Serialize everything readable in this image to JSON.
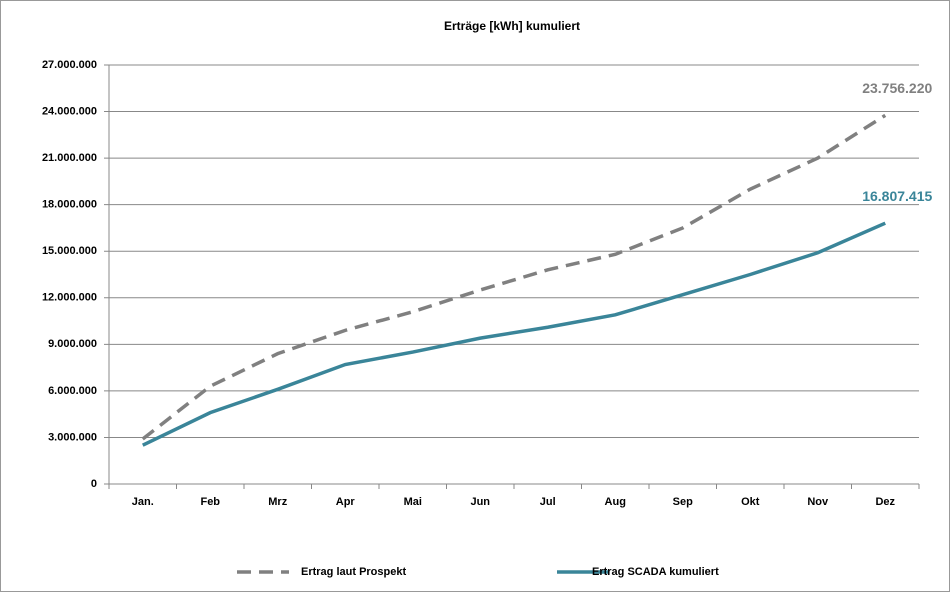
{
  "chart_data": {
    "type": "line",
    "title": "Erträge [kWh] kumuliert",
    "categories": [
      "Jan.",
      "Feb",
      "Mrz",
      "Apr",
      "Mai",
      "Jun",
      "Jul",
      "Aug",
      "Sep",
      "Okt",
      "Nov",
      "Dez"
    ],
    "series": [
      {
        "name": "Ertrag laut Prospekt",
        "color": "#808080",
        "dash": true,
        "values": [
          2900000,
          6300000,
          8400000,
          9900000,
          11100000,
          12500000,
          13800000,
          14800000,
          16500000,
          19000000,
          21000000,
          23756220
        ],
        "value_labels": [
          null,
          null,
          null,
          null,
          null,
          null,
          null,
          null,
          null,
          null,
          null,
          "23.756.220"
        ]
      },
      {
        "name": "Ertrag SCADA kumuliert",
        "color": "#3a8599",
        "dash": false,
        "values": [
          2500000,
          4600000,
          6100000,
          7700000,
          8500000,
          9400000,
          10100000,
          10900000,
          12200000,
          13500000,
          14900000,
          16807415
        ],
        "value_labels": [
          null,
          null,
          null,
          null,
          null,
          null,
          null,
          null,
          null,
          null,
          null,
          "16.807.415"
        ]
      }
    ],
    "ylim": [
      0,
      27000000
    ],
    "yticks": [
      0,
      {
        "value": 3000000,
        "label": "3.000.000"
      },
      {
        "value": 6000000,
        "label": "6.000.000"
      },
      {
        "value": 9000000,
        "label": "9.000.000"
      },
      {
        "value": 12000000,
        "label": "12.000.000"
      },
      {
        "value": 15000000,
        "label": "15.000.000"
      },
      {
        "value": 18000000,
        "label": "18.000.000"
      },
      {
        "value": 21000000,
        "label": "21.000.000"
      },
      {
        "value": 24000000,
        "label": "24.000.000"
      },
      {
        "value": 27000000,
        "label": "27.000.000"
      }
    ],
    "grid": true,
    "legend": "bottom"
  }
}
